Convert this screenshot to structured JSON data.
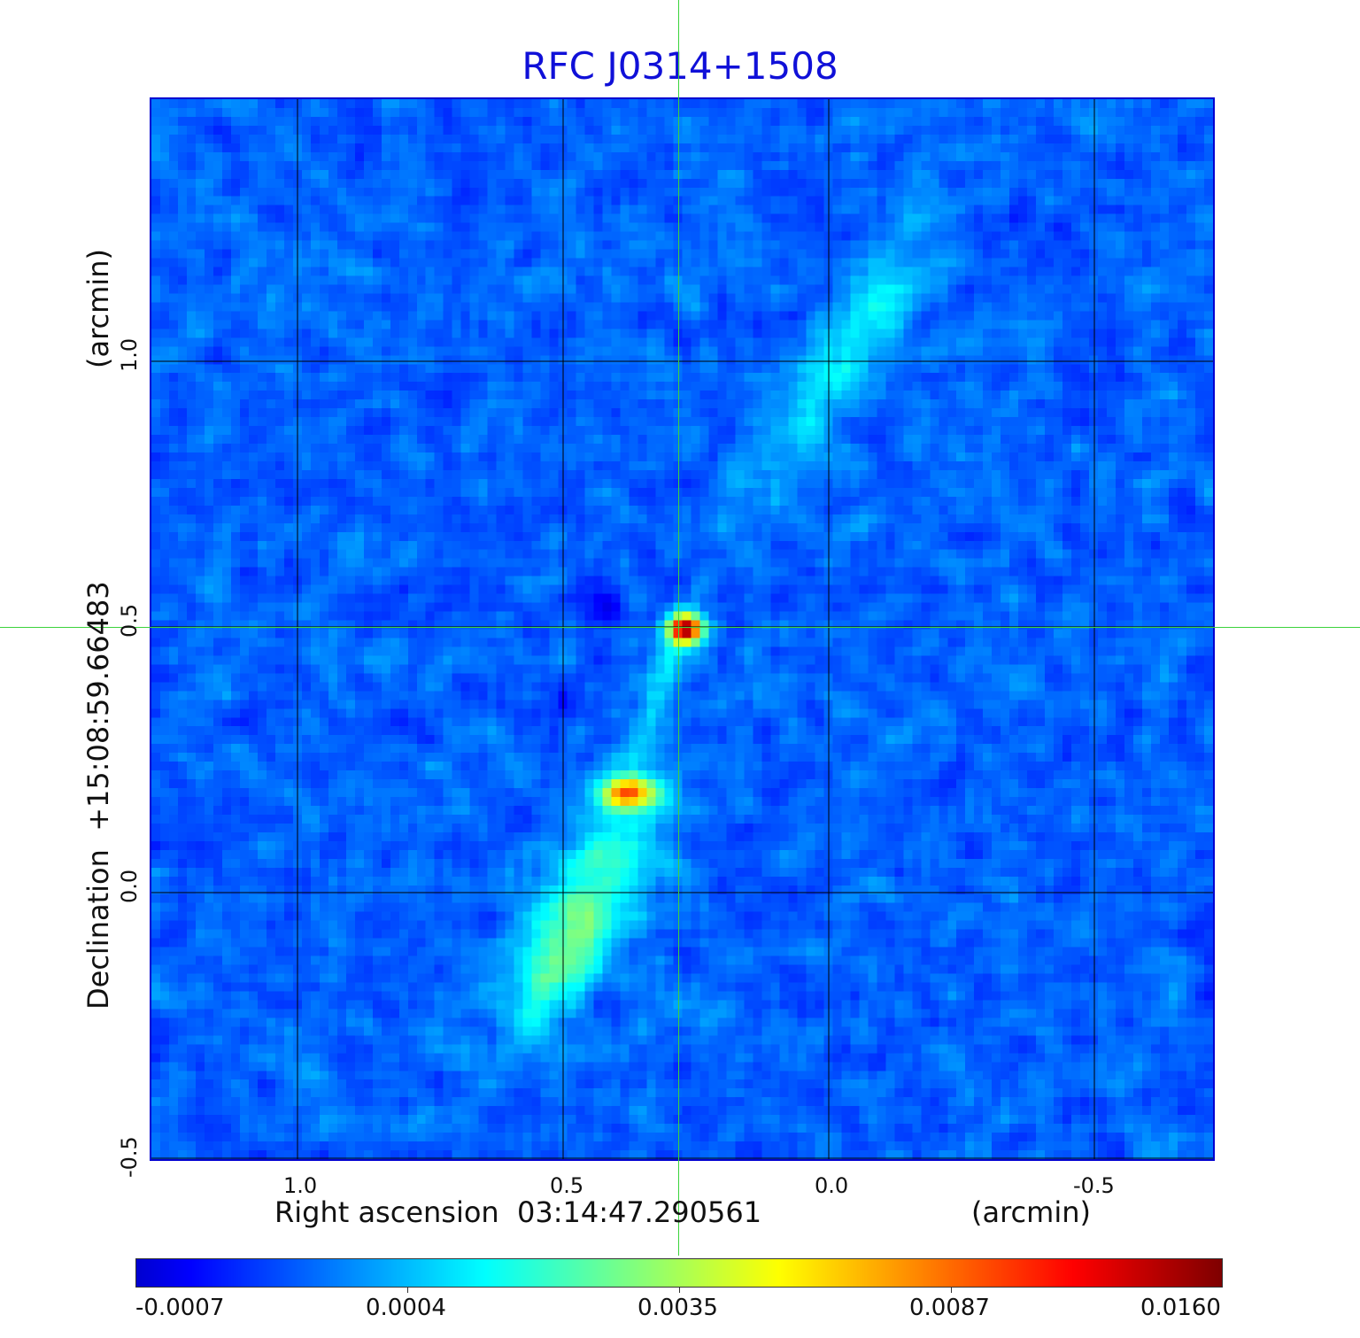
{
  "title": "RFC J0314+1508",
  "axes": {
    "x_label": "Right ascension  03:14:47.290561",
    "x_unit": "(arcmin)",
    "y_label": "Declination  +15:08:59.66483",
    "y_unit": "(arcmin)",
    "x_ticks": [
      "1.0",
      "0.5",
      "0.0",
      "-0.5"
    ],
    "y_ticks": [
      "1.0",
      "0.5",
      "0.0",
      "-0.5"
    ]
  },
  "colorbar": {
    "colormap": "jet",
    "tick_labels": [
      "-0.0007",
      "0.0004",
      "0.0035",
      "0.0087",
      "0.0160"
    ]
  },
  "colors": {
    "title": "#1010d8",
    "crosshair": "#3bd33b",
    "frame": "#0000d0"
  },
  "features": {
    "grid": true,
    "crosshair": true,
    "components": [
      "core",
      "jet knot",
      "extended emission to south-east",
      "extended emission to north-west"
    ]
  }
}
